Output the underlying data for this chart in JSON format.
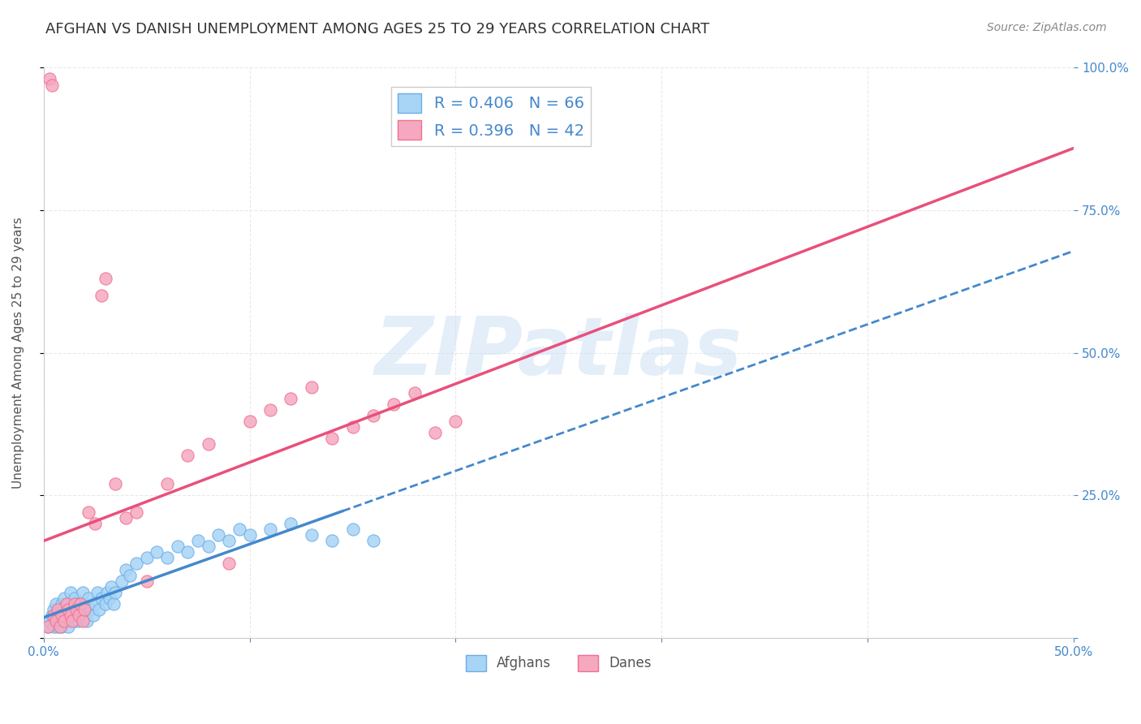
{
  "title": "AFGHAN VS DANISH UNEMPLOYMENT AMONG AGES 25 TO 29 YEARS CORRELATION CHART",
  "source": "Source: ZipAtlas.com",
  "ylabel": "Unemployment Among Ages 25 to 29 years",
  "xlabel_bottom": "",
  "xlim": [
    0.0,
    0.5
  ],
  "ylim": [
    0.0,
    1.0
  ],
  "xticks": [
    0.0,
    0.1,
    0.2,
    0.3,
    0.4,
    0.5
  ],
  "xticklabels": [
    "0.0%",
    "",
    "",
    "",
    "",
    "50.0%"
  ],
  "yticks_right": [
    0.0,
    0.25,
    0.5,
    0.75,
    1.0
  ],
  "yticklabels_right": [
    "",
    "25.0%",
    "50.0%",
    "75.0%",
    "100.0%"
  ],
  "afghan_color": "#a8d4f5",
  "dane_color": "#f5a8c0",
  "afghan_edge": "#6aaee8",
  "dane_edge": "#f07090",
  "trendline_afghan_color": "#4488cc",
  "trendline_dane_color": "#e8507a",
  "legend_r_afghan": "R = 0.406",
  "legend_n_afghan": "N = 66",
  "legend_r_dane": "R = 0.396",
  "legend_n_dane": "N = 42",
  "watermark": "ZIPatlas",
  "watermark_color": "#c8dff5",
  "background_color": "#ffffff",
  "grid_color": "#e0e0e0",
  "afghan_x": [
    0.002,
    0.003,
    0.004,
    0.005,
    0.005,
    0.006,
    0.006,
    0.007,
    0.007,
    0.008,
    0.008,
    0.009,
    0.009,
    0.01,
    0.01,
    0.011,
    0.011,
    0.012,
    0.012,
    0.013,
    0.013,
    0.014,
    0.015,
    0.015,
    0.016,
    0.016,
    0.017,
    0.018,
    0.019,
    0.02,
    0.02,
    0.021,
    0.022,
    0.023,
    0.024,
    0.025,
    0.026,
    0.027,
    0.028,
    0.03,
    0.031,
    0.032,
    0.033,
    0.034,
    0.035,
    0.038,
    0.04,
    0.042,
    0.045,
    0.05,
    0.055,
    0.06,
    0.065,
    0.07,
    0.075,
    0.08,
    0.085,
    0.09,
    0.095,
    0.1,
    0.11,
    0.12,
    0.13,
    0.14,
    0.15,
    0.16
  ],
  "afghan_y": [
    0.02,
    0.03,
    0.04,
    0.02,
    0.05,
    0.03,
    0.06,
    0.02,
    0.04,
    0.05,
    0.03,
    0.06,
    0.02,
    0.04,
    0.07,
    0.05,
    0.03,
    0.06,
    0.02,
    0.04,
    0.08,
    0.05,
    0.03,
    0.07,
    0.04,
    0.06,
    0.03,
    0.05,
    0.08,
    0.04,
    0.06,
    0.03,
    0.07,
    0.05,
    0.04,
    0.06,
    0.08,
    0.05,
    0.07,
    0.06,
    0.08,
    0.07,
    0.09,
    0.06,
    0.08,
    0.1,
    0.12,
    0.11,
    0.13,
    0.14,
    0.15,
    0.14,
    0.16,
    0.15,
    0.17,
    0.16,
    0.18,
    0.17,
    0.19,
    0.18,
    0.19,
    0.2,
    0.18,
    0.17,
    0.19,
    0.17
  ],
  "dane_x": [
    0.002,
    0.003,
    0.004,
    0.005,
    0.006,
    0.007,
    0.008,
    0.009,
    0.01,
    0.011,
    0.012,
    0.013,
    0.014,
    0.015,
    0.016,
    0.017,
    0.018,
    0.019,
    0.02,
    0.022,
    0.025,
    0.028,
    0.03,
    0.035,
    0.04,
    0.045,
    0.05,
    0.06,
    0.07,
    0.08,
    0.09,
    0.1,
    0.11,
    0.12,
    0.13,
    0.14,
    0.15,
    0.16,
    0.17,
    0.18,
    0.19,
    0.2
  ],
  "dane_y": [
    0.02,
    0.98,
    0.97,
    0.04,
    0.03,
    0.05,
    0.02,
    0.04,
    0.03,
    0.06,
    0.05,
    0.04,
    0.03,
    0.06,
    0.05,
    0.04,
    0.06,
    0.03,
    0.05,
    0.22,
    0.2,
    0.6,
    0.63,
    0.27,
    0.21,
    0.22,
    0.1,
    0.27,
    0.32,
    0.34,
    0.13,
    0.38,
    0.4,
    0.42,
    0.44,
    0.35,
    0.37,
    0.39,
    0.41,
    0.43,
    0.36,
    0.38
  ]
}
